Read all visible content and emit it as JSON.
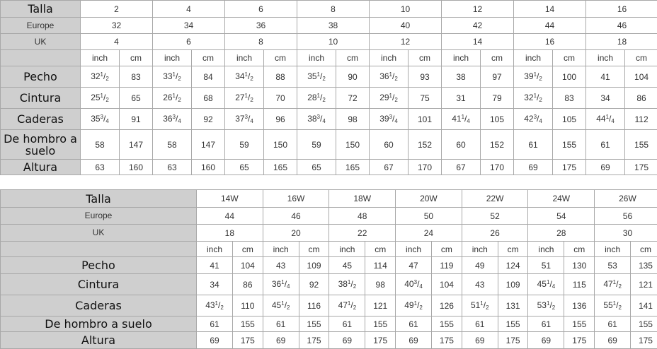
{
  "table1": {
    "labels": {
      "size": "Talla",
      "europe": "Europe",
      "uk": "UK",
      "units": [
        "inch",
        "cm"
      ]
    },
    "sizes": [
      "2",
      "4",
      "6",
      "8",
      "10",
      "12",
      "14",
      "16"
    ],
    "europe": [
      "32",
      "34",
      "36",
      "38",
      "40",
      "42",
      "44",
      "46"
    ],
    "uk": [
      "4",
      "6",
      "8",
      "10",
      "12",
      "14",
      "16",
      "18"
    ],
    "rows": [
      {
        "label": "Pecho",
        "values": [
          "32 1/2",
          "83",
          "33 1/2",
          "84",
          "34 1/2",
          "88",
          "35 1/2",
          "90",
          "36 1/2",
          "93",
          "38",
          "97",
          "39 1/2",
          "100",
          "41",
          "104"
        ]
      },
      {
        "label": "Cintura",
        "values": [
          "25 1/2",
          "65",
          "26 1/2",
          "68",
          "27 1/2",
          "70",
          "28 1/2",
          "72",
          "29 1/2",
          "75",
          "31",
          "79",
          "32 1/2",
          "83",
          "34",
          "86"
        ]
      },
      {
        "label": "Caderas",
        "values": [
          "35 3/4",
          "91",
          "36 3/4",
          "92",
          "37 3/4",
          "96",
          "38 3/4",
          "98",
          "39 3/4",
          "101",
          "41 1/4",
          "105",
          "42 3/4",
          "105",
          "44 1/4",
          "112"
        ]
      },
      {
        "label": "De hombro a suelo",
        "values": [
          "58",
          "147",
          "58",
          "147",
          "59",
          "150",
          "59",
          "150",
          "60",
          "152",
          "60",
          "152",
          "61",
          "155",
          "61",
          "155"
        ]
      },
      {
        "label": "Altura",
        "values": [
          "63",
          "160",
          "63",
          "160",
          "65",
          "165",
          "65",
          "165",
          "67",
          "170",
          "67",
          "170",
          "69",
          "175",
          "69",
          "175"
        ]
      }
    ]
  },
  "table2": {
    "labels": {
      "size": "Talla",
      "europe": "Europe",
      "uk": "UK",
      "units": [
        "inch",
        "cm"
      ]
    },
    "sizes": [
      "14W",
      "16W",
      "18W",
      "20W",
      "22W",
      "24W",
      "26W"
    ],
    "europe": [
      "44",
      "46",
      "48",
      "50",
      "52",
      "54",
      "56"
    ],
    "uk": [
      "18",
      "20",
      "22",
      "24",
      "26",
      "28",
      "30"
    ],
    "rows": [
      {
        "label": "Pecho",
        "values": [
          "41",
          "104",
          "43",
          "109",
          "45",
          "114",
          "47",
          "119",
          "49",
          "124",
          "51",
          "130",
          "53",
          "135"
        ]
      },
      {
        "label": "Cintura",
        "values": [
          "34",
          "86",
          "36 1/4",
          "92",
          "38 1/2",
          "98",
          "40 3/4",
          "104",
          "43",
          "109",
          "45 1/4",
          "115",
          "47 1/2",
          "121"
        ]
      },
      {
        "label": "Caderas",
        "values": [
          "43 1/2",
          "110",
          "45 1/2",
          "116",
          "47 1/2",
          "121",
          "49 1/2",
          "126",
          "51 1/2",
          "131",
          "53 1/2",
          "136",
          "55 1/2",
          "141"
        ]
      },
      {
        "label": "De hombro a suelo",
        "values": [
          "61",
          "155",
          "61",
          "155",
          "61",
          "155",
          "61",
          "155",
          "61",
          "155",
          "61",
          "155",
          "61",
          "155"
        ]
      },
      {
        "label": "Altura",
        "values": [
          "69",
          "175",
          "69",
          "175",
          "69",
          "175",
          "69",
          "175",
          "69",
          "175",
          "69",
          "175",
          "69",
          "175"
        ]
      }
    ]
  }
}
